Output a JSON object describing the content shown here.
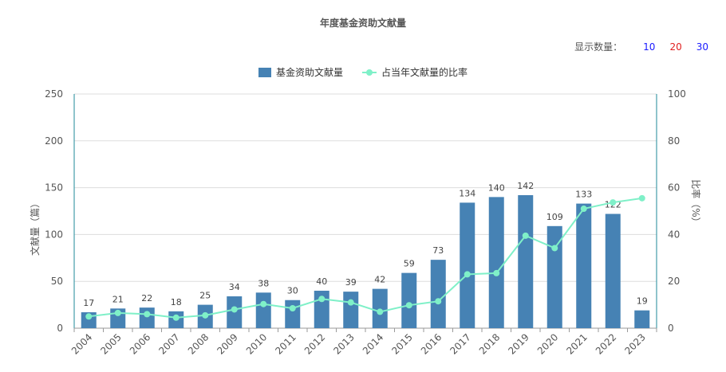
{
  "title": "年度基金资助文献量",
  "count_selector": {
    "label": "显示数量：",
    "options": [
      {
        "label": "10",
        "color": "#1a1aff"
      },
      {
        "label": "20",
        "color": "#e02020"
      },
      {
        "label": "30",
        "color": "#1a1aff"
      }
    ]
  },
  "colors": {
    "bar": "#4682b4",
    "line": "#7ff0c8",
    "axis": "#1f8a9a"
  },
  "chart_data": {
    "type": "bar",
    "title": "年度基金资助文献量",
    "categories": [
      "2004",
      "2005",
      "2006",
      "2007",
      "2008",
      "2009",
      "2010",
      "2011",
      "2012",
      "2013",
      "2014",
      "2015",
      "2016",
      "2017",
      "2018",
      "2019",
      "2020",
      "2021",
      "2022",
      "2023"
    ],
    "ylabel": "文献量（篇）",
    "y2label": "比率（%）",
    "ylim": [
      0,
      250
    ],
    "y2lim": [
      0,
      100
    ],
    "yticks": [
      0,
      50,
      100,
      150,
      200,
      250
    ],
    "y2ticks": [
      0,
      20,
      40,
      60,
      80,
      100
    ],
    "grid": true,
    "legend": "top-center",
    "series": [
      {
        "name": "基金资助文献量",
        "type": "bar",
        "axis": "left",
        "values": [
          17,
          21,
          22,
          18,
          25,
          34,
          38,
          30,
          40,
          39,
          42,
          59,
          73,
          134,
          140,
          142,
          109,
          133,
          122,
          19
        ]
      },
      {
        "name": "占当年文献量的比率",
        "type": "line",
        "axis": "right",
        "values": [
          5,
          6.5,
          6,
          4.5,
          5.5,
          8,
          10.3,
          8.5,
          12.5,
          11,
          7,
          9.8,
          11.5,
          23,
          23.5,
          39.5,
          34.2,
          51,
          53.7,
          55.5
        ]
      }
    ]
  }
}
